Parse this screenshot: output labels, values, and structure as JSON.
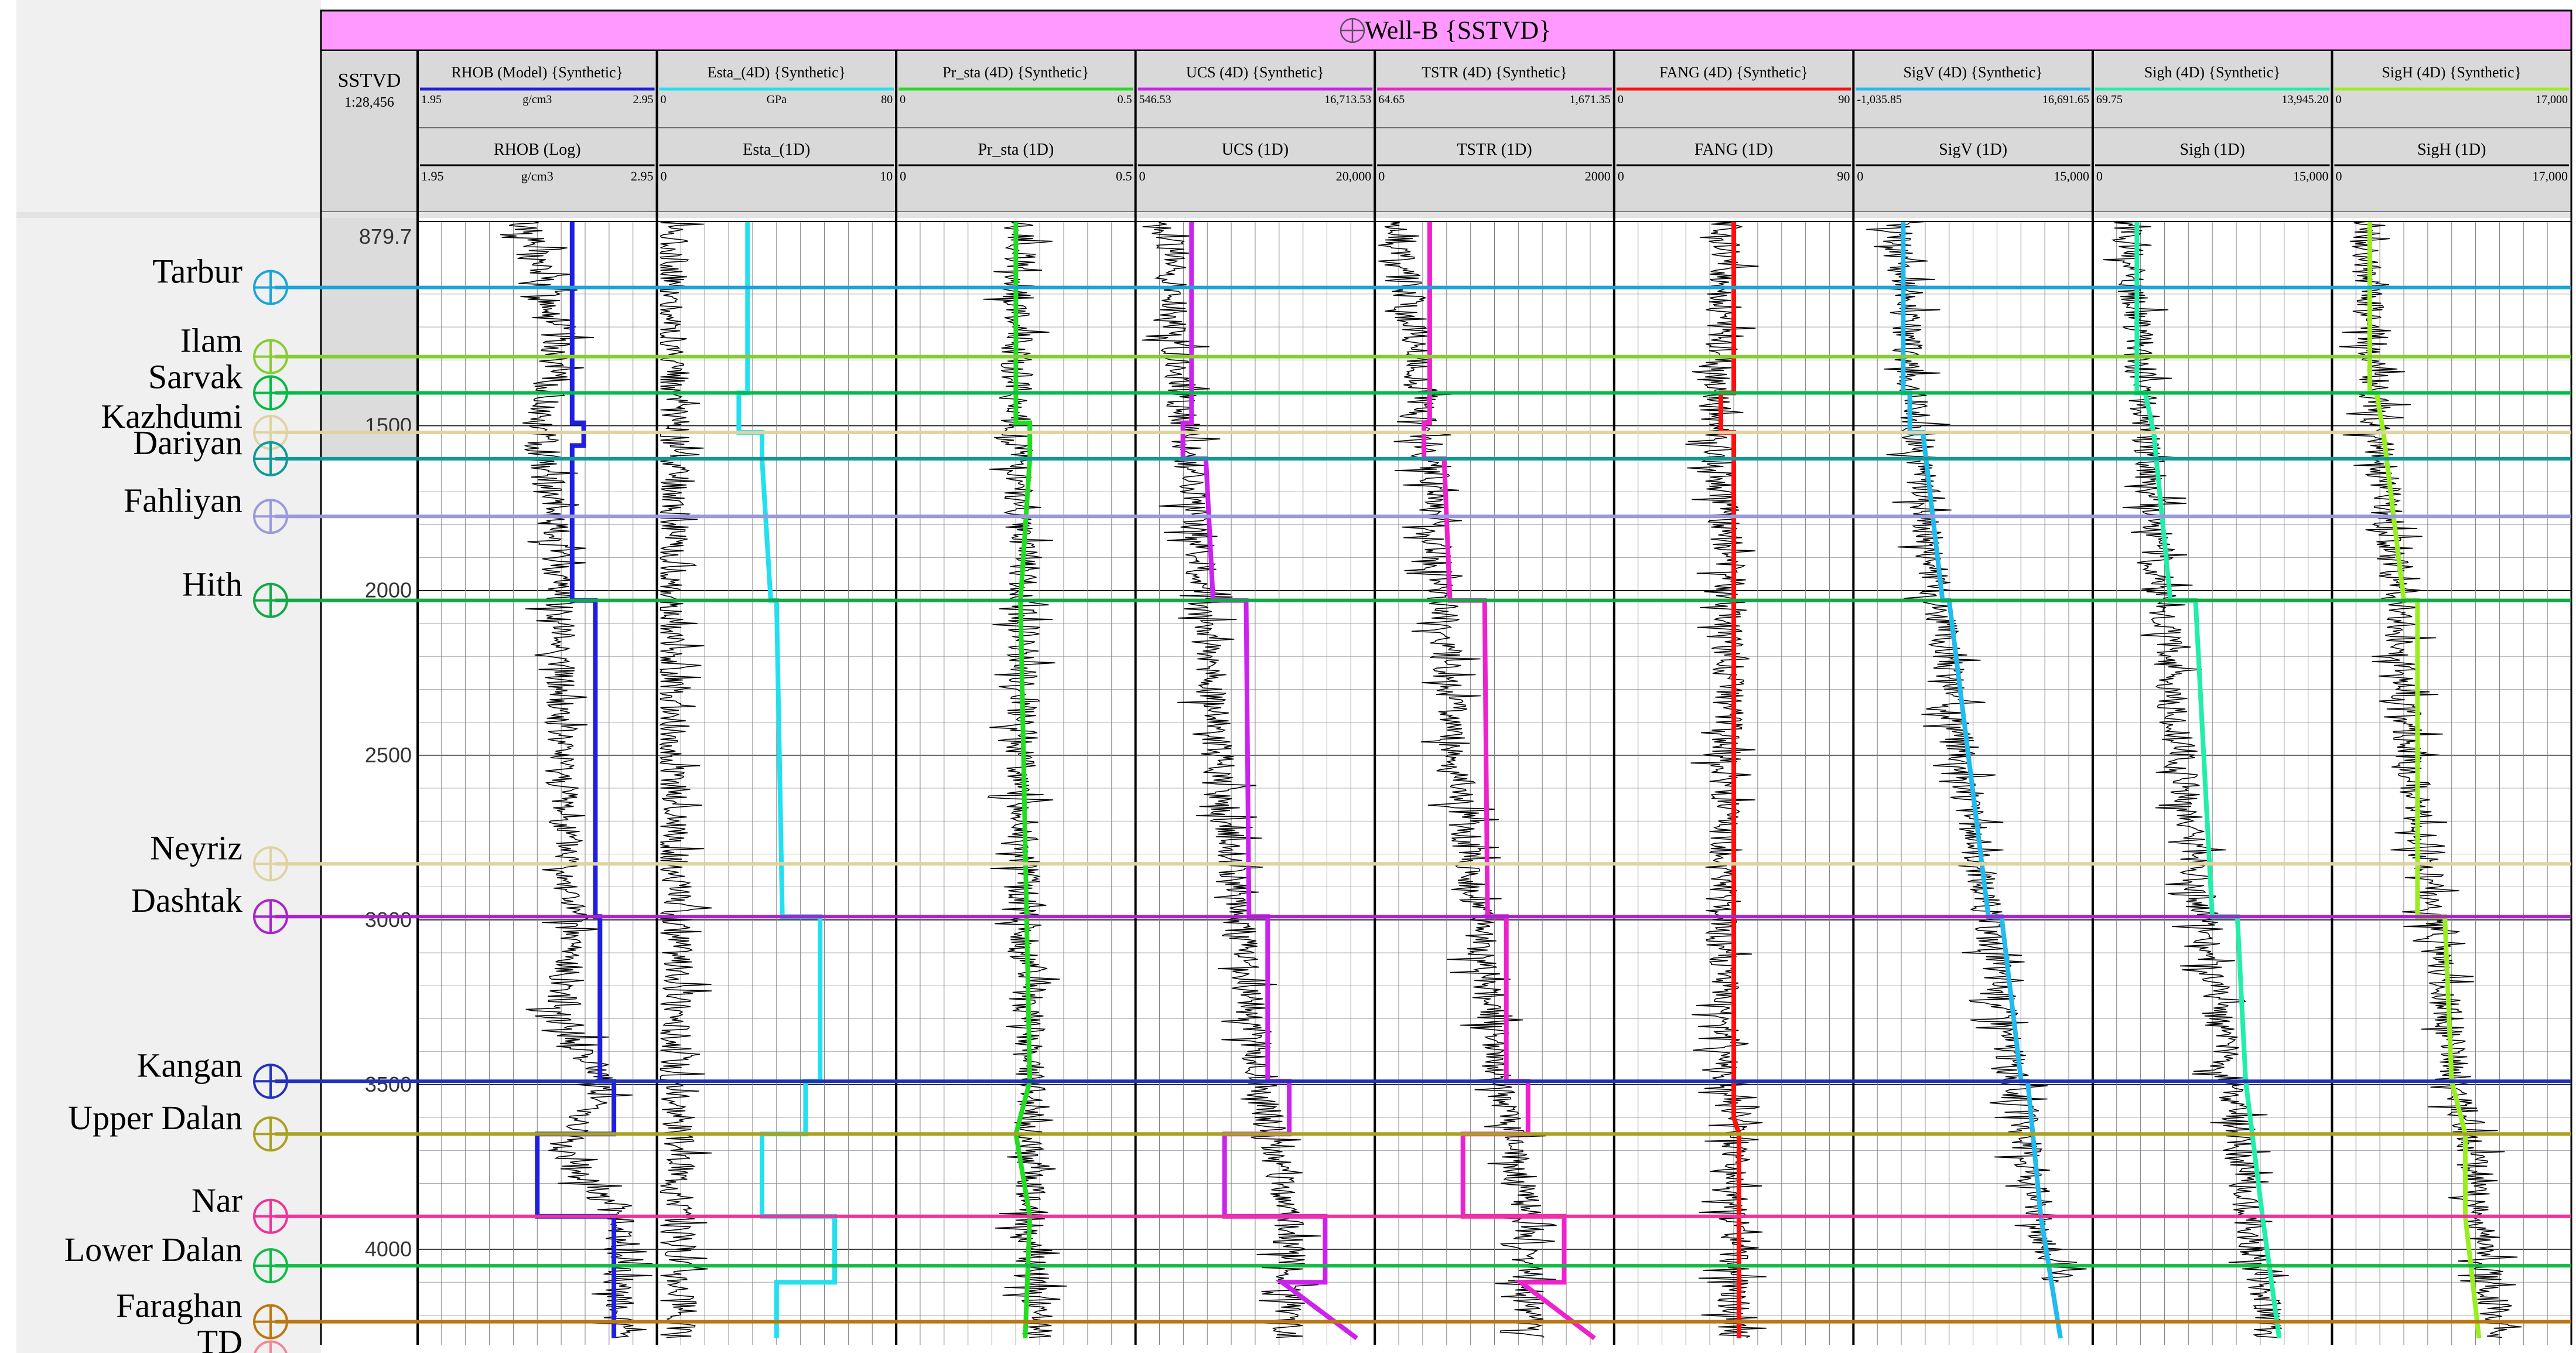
{
  "title": "Well-B {SSTVD}",
  "well_icon": "well-crosshair-icon",
  "depth_header": {
    "label": "SSTVD",
    "scale": "1:28,456"
  },
  "top_depth_label": "879.7",
  "depth_ticks": [
    "1500",
    "2000",
    "2500",
    "3000",
    "3500",
    "4000"
  ],
  "colors": {
    "title_band": "#ff99ff",
    "header_bg": "#d9d9d9",
    "label_panel": "#f0f0f0",
    "log_trace": "#000000",
    "grid": "#7f7f7f"
  },
  "chart_data": {
    "type": "line",
    "y_axis": {
      "label": "SSTVD",
      "range": [
        879.7,
        4290
      ],
      "reversed": true,
      "major_ticks": [
        1500,
        2000,
        2500,
        3000,
        3500,
        4000
      ]
    },
    "grid": true,
    "tracks": [
      {
        "name": "RHOB (Model) {Synthetic}",
        "curve_color": "#1f1fe0",
        "top": {
          "name": "RHOB",
          "sub": "(Model) {Synthetic}",
          "min": "1.95",
          "unit": "g/cm3",
          "max": "2.95",
          "line_color": "#1f1fe0"
        },
        "bottom": {
          "name": "RHOB (Log)",
          "min": "1.95",
          "unit": "g/cm3",
          "max": "2.95",
          "line_color": "#000000"
        },
        "range": [
          1.95,
          2.95
        ],
        "model": [
          [
            879.7,
            2.6
          ],
          [
            1491,
            2.6
          ],
          [
            1491,
            2.65
          ],
          [
            1560,
            2.65
          ],
          [
            1560,
            2.6
          ],
          [
            2030,
            2.6
          ],
          [
            2030,
            2.7
          ],
          [
            2990,
            2.7
          ],
          [
            2990,
            2.72
          ],
          [
            3490,
            2.72
          ],
          [
            3490,
            2.78
          ],
          [
            3650,
            2.78
          ],
          [
            3650,
            2.45
          ],
          [
            3900,
            2.45
          ],
          [
            3900,
            2.78
          ],
          [
            4270,
            2.78
          ]
        ],
        "log": [
          [
            879.7,
            2.4
          ],
          [
            1000,
            2.45
          ],
          [
            1200,
            2.55
          ],
          [
            1400,
            2.5
          ],
          [
            1500,
            2.45
          ],
          [
            1700,
            2.5
          ],
          [
            2000,
            2.55
          ],
          [
            2500,
            2.55
          ],
          [
            3000,
            2.6
          ],
          [
            3300,
            2.55
          ],
          [
            3500,
            2.75
          ],
          [
            3700,
            2.55
          ],
          [
            3900,
            2.8
          ],
          [
            4270,
            2.8
          ]
        ]
      },
      {
        "name": "Esta_(4D) {Synthetic}",
        "curve_color": "#22e0f0",
        "top": {
          "name": "Esta_(4D) {Synthetic}",
          "min": "0",
          "unit": "GPa",
          "max": "80",
          "line_color": "#22e0f0"
        },
        "bottom": {
          "name": "Esta_(1D)",
          "min": "0",
          "unit": "",
          "max": "10",
          "line_color": "#000000"
        },
        "range": [
          0,
          80
        ],
        "model": [
          [
            879.7,
            30
          ],
          [
            1400,
            30
          ],
          [
            1400,
            27
          ],
          [
            1520,
            27
          ],
          [
            1520,
            35
          ],
          [
            1600,
            35
          ],
          [
            2030,
            38
          ],
          [
            2030,
            40
          ],
          [
            2990,
            42
          ],
          [
            2990,
            55
          ],
          [
            3490,
            55
          ],
          [
            3490,
            50
          ],
          [
            3650,
            50
          ],
          [
            3650,
            35
          ],
          [
            3900,
            35
          ],
          [
            3900,
            60
          ],
          [
            4100,
            60
          ],
          [
            4100,
            40
          ],
          [
            4270,
            40
          ]
        ],
        "log": [
          [
            879.7,
            5
          ],
          [
            1200,
            3
          ],
          [
            1400,
            4
          ],
          [
            1600,
            4.5
          ],
          [
            2000,
            4
          ],
          [
            2500,
            3
          ],
          [
            3000,
            6
          ],
          [
            3500,
            5.5
          ],
          [
            3900,
            7
          ],
          [
            4270,
            7
          ]
        ]
      },
      {
        "name": "Pr_sta (4D) {Synthetic}",
        "curve_color": "#22dd22",
        "top": {
          "name": "Pr_sta (4D) {Synthetic}",
          "min": "0",
          "unit": "",
          "max": "0.5",
          "line_color": "#22dd22"
        },
        "bottom": {
          "name": "Pr_sta (1D)",
          "min": "0",
          "unit": "",
          "max": "0.5",
          "line_color": "#000000"
        },
        "range": [
          0,
          0.5
        ],
        "model": [
          [
            879.7,
            0.25
          ],
          [
            1491,
            0.25
          ],
          [
            1491,
            0.28
          ],
          [
            1600,
            0.28
          ],
          [
            2030,
            0.26
          ],
          [
            3490,
            0.28
          ],
          [
            3650,
            0.25
          ],
          [
            3900,
            0.28
          ],
          [
            4270,
            0.27
          ]
        ],
        "log": [
          [
            879.7,
            0.26
          ],
          [
            1500,
            0.25
          ],
          [
            2000,
            0.27
          ],
          [
            2500,
            0.26
          ],
          [
            3000,
            0.27
          ],
          [
            3500,
            0.28
          ],
          [
            4000,
            0.28
          ],
          [
            4270,
            0.3
          ]
        ]
      },
      {
        "name": "UCS (4D) {Synthetic}",
        "curve_color": "#cc22ee",
        "top": {
          "name": "UCS (4D) {Synthetic}",
          "min": "546.53",
          "unit": "",
          "max": "16,713.53",
          "line_color": "#cc22ee"
        },
        "bottom": {
          "name": "UCS (1D)",
          "min": "0",
          "unit": "",
          "max": "20,000",
          "line_color": "#000000"
        },
        "range": [
          546.53,
          16713.53
        ],
        "model": [
          [
            879.7,
            4200
          ],
          [
            1491,
            4200
          ],
          [
            1491,
            3600
          ],
          [
            1600,
            3600
          ],
          [
            1600,
            5200
          ],
          [
            2030,
            5700
          ],
          [
            2030,
            8000
          ],
          [
            2990,
            8200
          ],
          [
            2990,
            9500
          ],
          [
            3490,
            9500
          ],
          [
            3490,
            11000
          ],
          [
            3650,
            11000
          ],
          [
            3650,
            6500
          ],
          [
            3900,
            6500
          ],
          [
            3900,
            13500
          ],
          [
            4100,
            13500
          ],
          [
            4100,
            10500
          ],
          [
            4270,
            15700
          ]
        ],
        "log": [
          [
            879.7,
            2500
          ],
          [
            1200,
            3000
          ],
          [
            1600,
            4000
          ],
          [
            2000,
            5000
          ],
          [
            2500,
            6000
          ],
          [
            3000,
            7500
          ],
          [
            3500,
            9000
          ],
          [
            3900,
            11000
          ],
          [
            4270,
            11000
          ]
        ]
      },
      {
        "name": "TSTR (4D) {Synthetic}",
        "curve_color": "#ee22cc",
        "top": {
          "name": "TSTR (4D) {Synthetic}",
          "min": "64.65",
          "unit": "",
          "max": "1,671.35",
          "line_color": "#ee22cc"
        },
        "bottom": {
          "name": "TSTR (1D)",
          "min": "0",
          "unit": "",
          "max": "2000",
          "line_color": "#000000"
        },
        "range": [
          64.65,
          1671.35
        ],
        "model": [
          [
            879.7,
            420
          ],
          [
            1491,
            420
          ],
          [
            1491,
            380
          ],
          [
            1600,
            380
          ],
          [
            1600,
            520
          ],
          [
            2030,
            560
          ],
          [
            2030,
            800
          ],
          [
            2990,
            820
          ],
          [
            2990,
            950
          ],
          [
            3490,
            950
          ],
          [
            3490,
            1100
          ],
          [
            3650,
            1100
          ],
          [
            3650,
            650
          ],
          [
            3900,
            650
          ],
          [
            3900,
            1350
          ],
          [
            4100,
            1350
          ],
          [
            4100,
            1050
          ],
          [
            4270,
            1560
          ]
        ],
        "log": [
          [
            879.7,
            200
          ],
          [
            1200,
            300
          ],
          [
            1600,
            400
          ],
          [
            2000,
            500
          ],
          [
            2500,
            600
          ],
          [
            3000,
            750
          ],
          [
            3500,
            900
          ],
          [
            3900,
            1100
          ],
          [
            4270,
            1100
          ]
        ]
      },
      {
        "name": "FANG (4D) {Synthetic}",
        "curve_color": "#ff1010",
        "top": {
          "name": "FANG (4D) {Synthetic}",
          "min": "0",
          "unit": "",
          "max": "90",
          "line_color": "#ff1010"
        },
        "bottom": {
          "name": "FANG (1D)",
          "min": "0",
          "unit": "",
          "max": "90",
          "line_color": "#000000"
        },
        "range": [
          0,
          90
        ],
        "model": [
          [
            879.7,
            45
          ],
          [
            1400,
            45
          ],
          [
            1400,
            40
          ],
          [
            1520,
            40
          ],
          [
            1520,
            45
          ],
          [
            3600,
            45
          ],
          [
            3650,
            47
          ],
          [
            4270,
            47
          ]
        ],
        "log": [
          [
            879.7,
            42
          ],
          [
            1500,
            38
          ],
          [
            2000,
            44
          ],
          [
            2990,
            40
          ],
          [
            3500,
            42
          ],
          [
            3600,
            45
          ],
          [
            4270,
            45
          ]
        ]
      },
      {
        "name": "SigV (4D) {Synthetic}",
        "curve_color": "#22bbee",
        "top": {
          "name": "SigV (4D) {Synthetic}",
          "min": "-1,035.85",
          "unit": "",
          "max": "16,691.65",
          "line_color": "#22bbee"
        },
        "bottom": {
          "name": "SigV (1D)",
          "min": "0",
          "unit": "",
          "max": "15,000",
          "line_color": "#000000"
        },
        "range": [
          -1035.85,
          16691.65
        ],
        "model": [
          [
            879.7,
            2500
          ],
          [
            1400,
            2500
          ],
          [
            1400,
            3000
          ],
          [
            1520,
            3000
          ],
          [
            1520,
            4000
          ],
          [
            2030,
            5500
          ],
          [
            2030,
            6000
          ],
          [
            2990,
            9000
          ],
          [
            2990,
            10000
          ],
          [
            3490,
            11500
          ],
          [
            3490,
            12000
          ],
          [
            3900,
            13000
          ],
          [
            4270,
            14500
          ]
        ],
        "log": [
          [
            879.7,
            2000
          ],
          [
            1500,
            3500
          ],
          [
            2000,
            5000
          ],
          [
            2500,
            7000
          ],
          [
            3000,
            9000
          ],
          [
            3500,
            11000
          ],
          [
            4000,
            13500
          ],
          [
            4100,
            14000
          ]
        ]
      },
      {
        "name": "Sigh (4D) {Synthetic}",
        "curve_color": "#22eeaa",
        "top": {
          "name": "Sigh (4D) {Synthetic}",
          "min": "69.75",
          "unit": "",
          "max": "13,945.20",
          "line_color": "#22eeaa"
        },
        "bottom": {
          "name": "Sigh (1D)",
          "min": "0",
          "unit": "",
          "max": "15,000",
          "line_color": "#000000"
        },
        "range": [
          69.75,
          13945.2
        ],
        "model": [
          [
            879.7,
            2500
          ],
          [
            1400,
            2500
          ],
          [
            1400,
            3000
          ],
          [
            1520,
            3500
          ],
          [
            2030,
            4500
          ],
          [
            2030,
            6000
          ],
          [
            2990,
            7000
          ],
          [
            2990,
            8500
          ],
          [
            3490,
            9000
          ],
          [
            3900,
            10000
          ],
          [
            4270,
            11000
          ]
        ],
        "log": [
          [
            879.7,
            2000
          ],
          [
            1500,
            3000
          ],
          [
            2000,
            4000
          ],
          [
            2500,
            5000
          ],
          [
            3000,
            6500
          ],
          [
            3500,
            8000
          ],
          [
            4000,
            9500
          ],
          [
            4270,
            10500
          ]
        ]
      },
      {
        "name": "SigH (4D) {Synthetic}",
        "curve_color": "#99ee22",
        "top": {
          "name": "SigH (4D) {Synthetic}",
          "min": "0",
          "unit": "",
          "max": "17,000",
          "line_color": "#99ee22"
        },
        "bottom": {
          "name": "SigH (1D)",
          "min": "0",
          "unit": "",
          "max": "17,000",
          "line_color": "#000000"
        },
        "range": [
          0,
          17000
        ],
        "model": [
          [
            879.7,
            2500
          ],
          [
            1400,
            2500
          ],
          [
            1400,
            3000
          ],
          [
            1520,
            3500
          ],
          [
            2030,
            5000
          ],
          [
            2030,
            6000
          ],
          [
            2990,
            6000
          ],
          [
            2990,
            8000
          ],
          [
            3490,
            8500
          ],
          [
            3650,
            9500
          ],
          [
            3900,
            9500
          ],
          [
            4270,
            10500
          ]
        ],
        "log": [
          [
            879.7,
            2000
          ],
          [
            1500,
            3000
          ],
          [
            2000,
            4500
          ],
          [
            2500,
            5500
          ],
          [
            3000,
            7000
          ],
          [
            3500,
            9000
          ],
          [
            4000,
            11000
          ],
          [
            4270,
            12000
          ]
        ]
      }
    ],
    "formation_tops": [
      {
        "name": "Tarbur",
        "depth": 1080,
        "color": "#1ca3d8"
      },
      {
        "name": "Ilam",
        "depth": 1290,
        "color": "#88cc33"
      },
      {
        "name": "Sarvak",
        "depth": 1400,
        "color": "#00bb44"
      },
      {
        "name": "Kazhdumi",
        "depth": 1520,
        "color": "#ddd4a0"
      },
      {
        "name": "Dariyan",
        "depth": 1600,
        "color": "#119999"
      },
      {
        "name": "Fahliyan",
        "depth": 1775,
        "color": "#9999dd"
      },
      {
        "name": "Hith",
        "depth": 2030,
        "color": "#11aa44"
      },
      {
        "name": "Neyriz",
        "depth": 2830,
        "color": "#ddd4a0"
      },
      {
        "name": "Dashtak",
        "depth": 2990,
        "color": "#aa22cc"
      },
      {
        "name": "Kangan",
        "depth": 3490,
        "color": "#2233bb"
      },
      {
        "name": "Upper Dalan",
        "depth": 3650,
        "color": "#aaa022"
      },
      {
        "name": "Nar",
        "depth": 3900,
        "color": "#ee3399"
      },
      {
        "name": "Lower Dalan",
        "depth": 4050,
        "color": "#11bb44"
      },
      {
        "name": "Faraghan",
        "depth": 4220,
        "color": "#bb7711"
      },
      {
        "name": "TD",
        "depth": 4330,
        "color": "#ee8899"
      }
    ]
  }
}
